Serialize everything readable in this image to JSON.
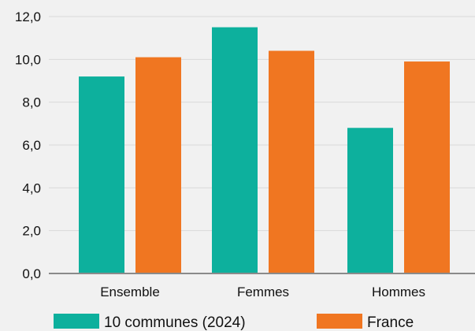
{
  "chart_data": {
    "type": "bar",
    "categories": [
      "Ensemble",
      "Femmes",
      "Hommes"
    ],
    "series": [
      {
        "name": "10 communes (2024)",
        "color": "#0db09d",
        "values": [
          9.2,
          11.5,
          6.8
        ]
      },
      {
        "name": "France",
        "color": "#f07621",
        "values": [
          10.1,
          10.4,
          9.9
        ]
      }
    ],
    "ylim": [
      0,
      12
    ],
    "yticks": [
      "0,0",
      "2,0",
      "4,0",
      "6,0",
      "8,0",
      "10,0",
      "12,0"
    ],
    "ytick_values": [
      0,
      2,
      4,
      6,
      8,
      10,
      12
    ],
    "grid": true,
    "legend_position": "bottom",
    "gridline_color": "#d9d9d9",
    "axis_color": "#8a8a8a"
  }
}
